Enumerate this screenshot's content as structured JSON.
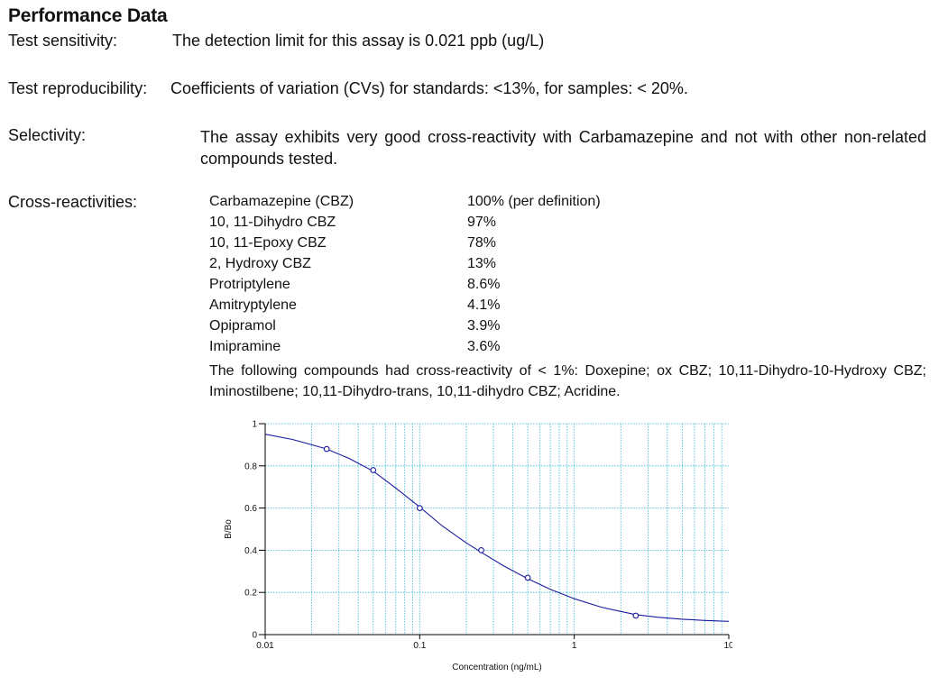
{
  "heading": "Performance Data",
  "sensitivity": {
    "label": "Test sensitivity:",
    "text": "The detection limit for this assay is 0.021 ppb (ug/L)"
  },
  "reproducibility": {
    "label": "Test reproducibility:",
    "text": "Coefficients of variation (CVs) for standards: <13%, for samples: < 20%."
  },
  "selectivity": {
    "label": "Selectivity:",
    "text": "The assay exhibits very good cross-reactivity with Carbamazepine and not with other non-related compounds tested."
  },
  "cross_reactivities": {
    "label": "Cross-reactivities:",
    "rows": [
      {
        "compound": "Carbamazepine (CBZ)",
        "value": "100% (per definition)"
      },
      {
        "compound": "10, 11-Dihydro CBZ",
        "value": "97%"
      },
      {
        "compound": "10, 11-Epoxy CBZ",
        "value": "78%"
      },
      {
        "compound": "2, Hydroxy CBZ",
        "value": "13%"
      },
      {
        "compound": "Protriptylene",
        "value": "8.6%"
      },
      {
        "compound": "Amitryptylene",
        "value": "4.1%"
      },
      {
        "compound": "Opipramol",
        "value": "3.9%"
      },
      {
        "compound": "Imipramine",
        "value": "3.6%"
      }
    ],
    "note": "The following compounds had cross-reactivity of < 1%: Doxepine; ox CBZ; 10,11-Dihydro-10-Hydroxy CBZ; Iminostilbene; 10,11-Dihydro-trans, 10,11-dihydro CBZ; Acridine."
  },
  "chart_data": {
    "type": "scatter",
    "xlabel": "Concentration (ng/mL)",
    "ylabel": "B/Bo",
    "x_scale": "log",
    "xlim": [
      0.01,
      10
    ],
    "ylim": [
      0,
      1
    ],
    "x_ticks": [
      "0.01",
      "0.1",
      "1",
      "10"
    ],
    "y_ticks": [
      "0",
      "0.2",
      "0.4",
      "0.6",
      "0.8",
      "1"
    ],
    "grid": true,
    "series": [
      {
        "points": [
          {
            "x": 0.025,
            "y": 0.88
          },
          {
            "x": 0.05,
            "y": 0.78
          },
          {
            "x": 0.1,
            "y": 0.6
          },
          {
            "x": 0.25,
            "y": 0.4
          },
          {
            "x": 0.5,
            "y": 0.27
          },
          {
            "x": 2.5,
            "y": 0.09
          }
        ]
      }
    ],
    "fit_curve": [
      {
        "x": 0.01,
        "y": 0.95
      },
      {
        "x": 0.015,
        "y": 0.925
      },
      {
        "x": 0.02,
        "y": 0.9
      },
      {
        "x": 0.025,
        "y": 0.88
      },
      {
        "x": 0.035,
        "y": 0.835
      },
      {
        "x": 0.05,
        "y": 0.775
      },
      {
        "x": 0.07,
        "y": 0.695
      },
      {
        "x": 0.1,
        "y": 0.605
      },
      {
        "x": 0.14,
        "y": 0.515
      },
      {
        "x": 0.2,
        "y": 0.435
      },
      {
        "x": 0.25,
        "y": 0.39
      },
      {
        "x": 0.35,
        "y": 0.325
      },
      {
        "x": 0.5,
        "y": 0.265
      },
      {
        "x": 0.7,
        "y": 0.215
      },
      {
        "x": 1,
        "y": 0.17
      },
      {
        "x": 1.5,
        "y": 0.13
      },
      {
        "x": 2,
        "y": 0.11
      },
      {
        "x": 2.5,
        "y": 0.095
      },
      {
        "x": 3.5,
        "y": 0.082
      },
      {
        "x": 5,
        "y": 0.073
      },
      {
        "x": 7,
        "y": 0.067
      },
      {
        "x": 10,
        "y": 0.063
      }
    ],
    "colors": {
      "curve": "#1a1aa0",
      "points": "#1a1aa0",
      "grid": "#35b6d6",
      "axis": "#000000"
    }
  }
}
